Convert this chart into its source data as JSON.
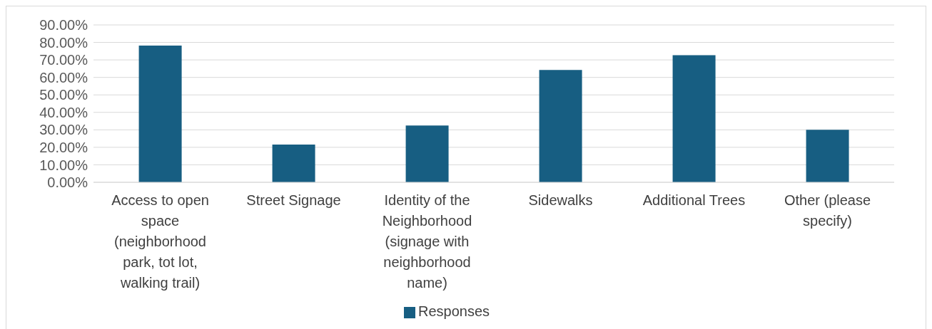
{
  "chart_data": {
    "type": "bar",
    "categories": [
      "Access to open space (neighborhood park, tot lot, walking trail)",
      "Street Signage",
      "Identity of the Neighborhood (signage with neighborhood name)",
      "Sidewalks",
      "Additional Trees",
      "Other (please specify)"
    ],
    "series": [
      {
        "name": "Responses",
        "color": "#175e82",
        "values": [
          78.2,
          21.6,
          32.5,
          64.2,
          72.7,
          30.0
        ]
      }
    ],
    "ylim": [
      0,
      90
    ],
    "yticks": [
      {
        "value": 0,
        "label": "0.00%"
      },
      {
        "value": 10,
        "label": "10.00%"
      },
      {
        "value": 20,
        "label": "20.00%"
      },
      {
        "value": 30,
        "label": "30.00%"
      },
      {
        "value": 40,
        "label": "40.00%"
      },
      {
        "value": 50,
        "label": "50.00%"
      },
      {
        "value": 60,
        "label": "60.00%"
      },
      {
        "value": 70,
        "label": "70.00%"
      },
      {
        "value": 80,
        "label": "80.00%"
      },
      {
        "value": 90,
        "label": "90.00%"
      }
    ],
    "grid": "y",
    "legend": "bottom"
  }
}
